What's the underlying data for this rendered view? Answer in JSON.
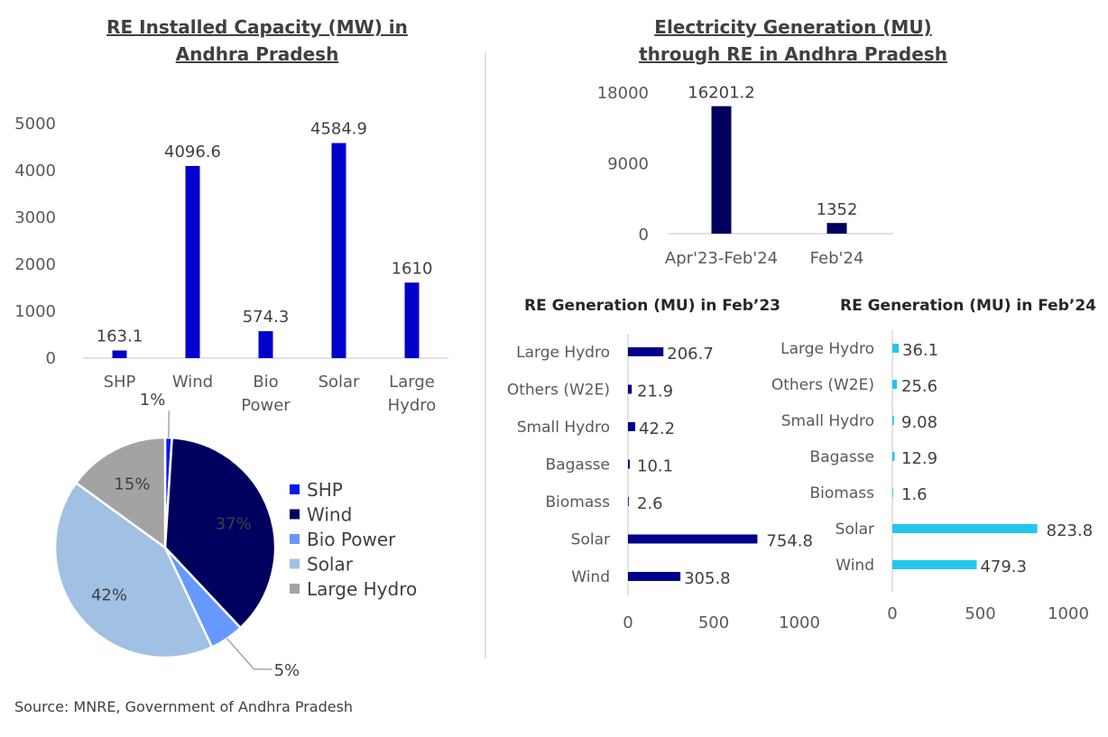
{
  "source": "Source: MNRE, Government of Andhra Pradesh",
  "chart_data": [
    {
      "id": "capacity",
      "type": "bar",
      "title_lines": [
        "RE Installed Capacity (MW) in",
        "Andhra Pradesh"
      ],
      "categories": [
        [
          "SHP"
        ],
        [
          "Wind"
        ],
        [
          "Bio",
          "Power"
        ],
        [
          "Solar"
        ],
        [
          "Large",
          "Hydro"
        ]
      ],
      "values": [
        163.1,
        4096.6,
        574.3,
        4584.9,
        1610
      ],
      "labels": [
        "163.1",
        "4096.6",
        "574.3",
        "4584.9",
        "1610"
      ],
      "yticks": [
        0,
        1000,
        2000,
        3000,
        4000,
        5000
      ],
      "ylim": [
        0,
        5000
      ],
      "color": "#0000CC"
    },
    {
      "id": "capacity-share",
      "type": "pie",
      "slices": [
        {
          "name": "SHP",
          "value": 1,
          "label": "1%",
          "color": "#0A17F0"
        },
        {
          "name": "Wind",
          "value": 37,
          "label": "37%",
          "color": "#00005E"
        },
        {
          "name": "Bio Power",
          "value": 5,
          "label": "5%",
          "color": "#6699FF"
        },
        {
          "name": "Solar",
          "value": 42,
          "label": "42%",
          "color": "#A0C0E4"
        },
        {
          "name": "Large Hydro",
          "value": 15,
          "label": "15%",
          "color": "#A3A3A3"
        }
      ],
      "legend_position": "right"
    },
    {
      "id": "generation",
      "type": "bar",
      "title_lines": [
        "Electricity Generation (MU)",
        "through RE in Andhra Pradesh"
      ],
      "categories": [
        "Apr'23-Feb'24",
        "Feb'24"
      ],
      "values": [
        16201.2,
        1352
      ],
      "labels": [
        "16201.2",
        "1352"
      ],
      "yticks": [
        0,
        9000,
        18000
      ],
      "ylim": [
        0,
        18000
      ],
      "color": "#00005E"
    },
    {
      "id": "gen-feb23",
      "type": "bar",
      "orientation": "horizontal",
      "title": "RE Generation (MU) in Feb’23",
      "categories": [
        "Large Hydro",
        "Others (W2E)",
        "Small Hydro",
        "Bagasse",
        "Biomass",
        "Solar",
        "Wind"
      ],
      "values": [
        206.7,
        21.9,
        42.2,
        10.1,
        2.6,
        754.8,
        305.8
      ],
      "labels": [
        "206.7",
        "21.9",
        "42.2",
        "10.1",
        "2.6",
        "754.8",
        "305.8"
      ],
      "xticks": [
        0,
        500,
        1000
      ],
      "xlim": [
        0,
        1000
      ],
      "color": "#00008B"
    },
    {
      "id": "gen-feb24",
      "type": "bar",
      "orientation": "horizontal",
      "title": "RE Generation (MU) in Feb’24",
      "categories": [
        "Large Hydro",
        "Others (W2E)",
        "Small Hydro",
        "Bagasse",
        "Biomass",
        "Solar",
        "Wind"
      ],
      "values": [
        36.1,
        25.6,
        9.08,
        12.9,
        1.6,
        823.8,
        479.3
      ],
      "labels": [
        "36.1",
        "25.6",
        "9.08",
        "12.9",
        "1.6",
        "823.8",
        "479.3"
      ],
      "xticks": [
        0,
        500,
        1000
      ],
      "xlim": [
        0,
        1000
      ],
      "color": "#22C7EE"
    }
  ]
}
